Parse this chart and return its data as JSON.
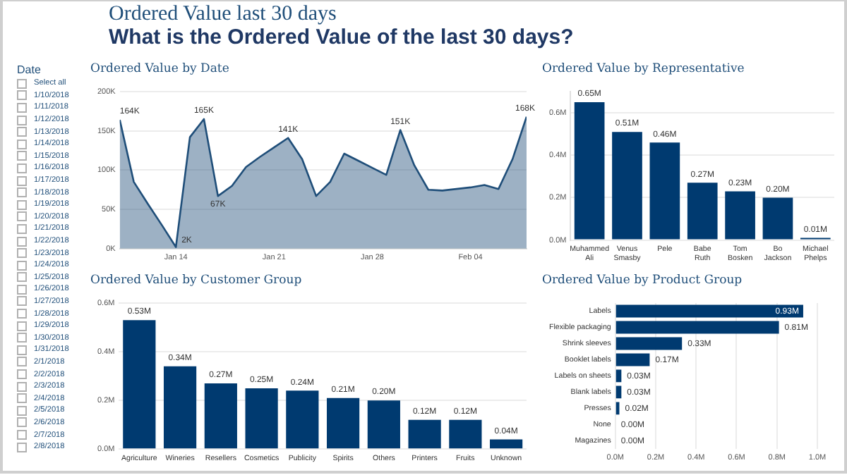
{
  "chart_data": [
    {
      "type": "other",
      "title": "Ordered Value last 30 days",
      "subtitle": "What is the Ordered Value of the last 30 days?"
    },
    {
      "type": "other",
      "title": "Date",
      "annotations": [
        "Select all",
        "1/10/2018",
        "1/11/2018",
        "1/12/2018",
        "1/13/2018",
        "1/14/2018",
        "1/15/2018",
        "1/16/2018",
        "1/17/2018",
        "1/18/2018",
        "1/19/2018",
        "1/20/2018",
        "1/21/2018",
        "1/22/2018",
        "1/23/2018",
        "1/24/2018",
        "1/25/2018",
        "1/26/2018",
        "1/27/2018",
        "1/28/2018",
        "1/29/2018",
        "1/30/2018",
        "1/31/2018",
        "2/1/2018",
        "2/2/2018",
        "2/3/2018",
        "2/4/2018",
        "2/5/2018",
        "2/6/2018",
        "2/7/2018",
        "2/8/2018"
      ]
    },
    {
      "type": "area",
      "title": "Ordered Value by Date",
      "color": "#1f4e79",
      "x": [
        "2018-01-10",
        "2018-01-11",
        "2018-01-12",
        "2018-01-13",
        "2018-01-14",
        "2018-01-15",
        "2018-01-16",
        "2018-01-17",
        "2018-01-18",
        "2018-01-19",
        "2018-01-20",
        "2018-01-21",
        "2018-01-22",
        "2018-01-23",
        "2018-01-24",
        "2018-01-25",
        "2018-01-26",
        "2018-01-27",
        "2018-01-28",
        "2018-01-29",
        "2018-01-30",
        "2018-01-31",
        "2018-02-01",
        "2018-02-02",
        "2018-02-03",
        "2018-02-04",
        "2018-02-05",
        "2018-02-06",
        "2018-02-07",
        "2018-02-08"
      ],
      "values": [
        164,
        85,
        57,
        30,
        2,
        142,
        165,
        67,
        80,
        104,
        117,
        129,
        141,
        114,
        67,
        85,
        121,
        112,
        103,
        94,
        151,
        106,
        75,
        74,
        76,
        78,
        81,
        76,
        114,
        168
      ],
      "value_labels": [
        "164K",
        null,
        null,
        null,
        "2K",
        null,
        "165K",
        "67K",
        null,
        null,
        null,
        null,
        "141K",
        null,
        null,
        null,
        null,
        null,
        null,
        null,
        "151K",
        null,
        null,
        null,
        null,
        null,
        null,
        null,
        null,
        "168K"
      ],
      "xlim": [
        "2018-01-10",
        "2018-02-08"
      ],
      "xticks": [
        {
          "value": "2018-01-14",
          "label": "Jan 14"
        },
        {
          "value": "2018-01-21",
          "label": "Jan 21"
        },
        {
          "value": "2018-01-28",
          "label": "Jan 28"
        },
        {
          "value": "2018-02-04",
          "label": "Feb 04"
        }
      ],
      "ylim": [
        0,
        200
      ],
      "yticks": [
        {
          "value": 0,
          "label": "0K"
        },
        {
          "value": 50,
          "label": "50K"
        },
        {
          "value": 100,
          "label": "100K"
        },
        {
          "value": 150,
          "label": "150K"
        },
        {
          "value": 200,
          "label": "200K"
        }
      ],
      "grid": "y",
      "legend": false
    },
    {
      "type": "bar",
      "title": "Ordered Value by Representative",
      "color": "#003a70",
      "categories": [
        "Muhammed Ali",
        "Venus Smasby",
        "Pele",
        "Babe Ruth",
        "Tom Bosken",
        "Bo Jackson",
        "Michael Phelps"
      ],
      "values": [
        0.65,
        0.51,
        0.46,
        0.27,
        0.23,
        0.2,
        0.01
      ],
      "value_labels": [
        "0.65M",
        "0.51M",
        "0.46M",
        "0.27M",
        "0.23M",
        "0.20M",
        "0.01M"
      ],
      "ylim": [
        0,
        0.7
      ],
      "yticks": [
        {
          "value": 0,
          "label": "0.0M"
        },
        {
          "value": 0.2,
          "label": "0.2M"
        },
        {
          "value": 0.4,
          "label": "0.4M"
        },
        {
          "value": 0.6,
          "label": "0.6M"
        }
      ],
      "grid": "y",
      "legend": false
    },
    {
      "type": "bar",
      "title": "Ordered Value by Customer Group",
      "color": "#003a70",
      "categories": [
        "Agriculture",
        "Wineries",
        "Resellers",
        "Cosmetics",
        "Publicity",
        "Spirits",
        "Others",
        "Printers",
        "Fruits",
        "Unknown"
      ],
      "values": [
        0.53,
        0.34,
        0.27,
        0.25,
        0.24,
        0.21,
        0.2,
        0.12,
        0.12,
        0.04
      ],
      "value_labels": [
        "0.53M",
        "0.34M",
        "0.27M",
        "0.25M",
        "0.24M",
        "0.21M",
        "0.20M",
        "0.12M",
        "0.12M",
        "0.04M"
      ],
      "ylim": [
        0,
        0.6
      ],
      "yticks": [
        {
          "value": 0,
          "label": "0.0M"
        },
        {
          "value": 0.2,
          "label": "0.2M"
        },
        {
          "value": 0.4,
          "label": "0.4M"
        },
        {
          "value": 0.6,
          "label": "0.6M"
        }
      ],
      "grid": "y",
      "legend": false
    },
    {
      "type": "bar",
      "orientation": "horizontal",
      "title": "Ordered Value by Product Group",
      "categories": [
        "Labels",
        "Flexible packaging",
        "Shrink sleeves",
        "Booklet labels",
        "Labels on sheets",
        "Blank labels",
        "Presses",
        "None",
        "Magazines"
      ],
      "values": [
        0.93,
        0.81,
        0.33,
        0.17,
        0.03,
        0.03,
        0.02,
        0.0,
        0.0
      ],
      "colors": [
        "#003a70",
        "#003a70",
        "#003a70",
        "#003a70",
        "#003a70",
        "#003a70",
        "#003a70",
        "#a9c0d8",
        "#a9c0d8"
      ],
      "value_labels": [
        "0.93M",
        "0.81M",
        "0.33M",
        "0.17M",
        "0.03M",
        "0.03M",
        "0.02M",
        "0.00M",
        "0.00M"
      ],
      "xlim": [
        0,
        1.0
      ],
      "xticks": [
        {
          "value": 0,
          "label": "0.0M"
        },
        {
          "value": 0.2,
          "label": "0.2M"
        },
        {
          "value": 0.4,
          "label": "0.4M"
        },
        {
          "value": 0.6,
          "label": "0.6M"
        },
        {
          "value": 0.8,
          "label": "0.8M"
        },
        {
          "value": 1.0,
          "label": "1.0M"
        }
      ],
      "grid": "x",
      "legend": false
    }
  ]
}
